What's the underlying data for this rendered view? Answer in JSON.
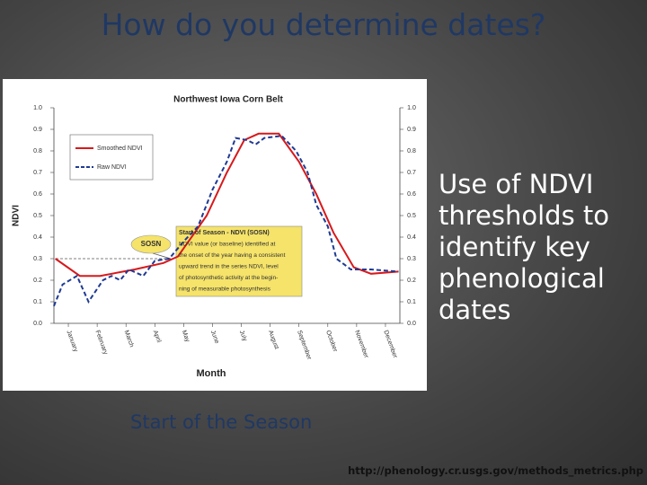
{
  "slide_title": "How do you determine dates?",
  "body_text": "Use of NDVI thresholds to identify key phenological dates",
  "caption": "Start of the Season",
  "source_url": "http://phenology.cr.usgs.gov/methods_metrics.php",
  "chart_data": {
    "type": "line",
    "title": "Northwest Iowa Corn Belt",
    "x_label": "Month",
    "y_label": "NDVI",
    "xlim": [
      0,
      12
    ],
    "xticks": [
      {
        "value": 0.5,
        "label": "January"
      },
      {
        "value": 1.5,
        "label": "February"
      },
      {
        "value": 2.5,
        "label": "March"
      },
      {
        "value": 3.5,
        "label": "April"
      },
      {
        "value": 4.5,
        "label": "May"
      },
      {
        "value": 5.5,
        "label": "June"
      },
      {
        "value": 6.5,
        "label": "July"
      },
      {
        "value": 7.5,
        "label": "August"
      },
      {
        "value": 8.5,
        "label": "September"
      },
      {
        "value": 9.5,
        "label": "October"
      },
      {
        "value": 10.5,
        "label": "November"
      },
      {
        "value": 11.5,
        "label": "December"
      }
    ],
    "ylim": [
      0,
      1
    ],
    "yticks": [
      {
        "value": 0,
        "label": "0.0"
      },
      0.1,
      0.2,
      0.3,
      0.4,
      0.5,
      0.6,
      0.7,
      0.8,
      0.9,
      {
        "value": 1,
        "label": "1.0"
      }
    ],
    "y2lim": [
      0,
      1
    ],
    "y2ticks": [
      {
        "value": 0,
        "label": "0.0"
      },
      0.1,
      0.2,
      0.3,
      0.4,
      0.5,
      0.6,
      0.7,
      0.8,
      0.9,
      {
        "value": 1,
        "label": "1.0"
      }
    ],
    "series": [
      {
        "name": "Smoothed NDVI",
        "color": "#d7191c",
        "dash": false,
        "x": [
          0.05,
          0.9,
          1.6,
          2.8,
          3.8,
          4.3,
          5.3,
          6.0,
          6.6,
          7.1,
          7.8,
          8.5,
          9.1,
          9.7,
          10.4,
          11.0,
          11.95
        ],
        "values": [
          0.3,
          0.22,
          0.22,
          0.25,
          0.28,
          0.31,
          0.5,
          0.7,
          0.85,
          0.88,
          0.88,
          0.75,
          0.6,
          0.42,
          0.26,
          0.23,
          0.24
        ]
      },
      {
        "name": "Raw NDVI",
        "color": "#1f3a93",
        "dash": true,
        "x": [
          0,
          0.3,
          0.8,
          1.2,
          1.7,
          2.0,
          2.3,
          2.6,
          3.1,
          3.5,
          4.0,
          4.5,
          5.0,
          5.5,
          6.0,
          6.3,
          6.7,
          7.0,
          7.3,
          7.9,
          8.4,
          8.8,
          9.1,
          9.5,
          9.8,
          10.3,
          11.0,
          11.95
        ],
        "values": [
          0.08,
          0.18,
          0.22,
          0.1,
          0.2,
          0.22,
          0.2,
          0.25,
          0.22,
          0.29,
          0.3,
          0.38,
          0.45,
          0.62,
          0.75,
          0.86,
          0.85,
          0.83,
          0.86,
          0.87,
          0.8,
          0.7,
          0.55,
          0.45,
          0.3,
          0.25,
          0.25,
          0.24
        ]
      }
    ],
    "legend": "upper left",
    "annotation_label": "SOSN",
    "annotation_box": [
      "Start of Season - NDVI (SOSN)",
      "NDVI value (or baseline) identified at",
      "the onset of the year having a consistent",
      "upward trend in the series NDVI, level",
      "of photosynthetic activity at the begin-",
      "ning of measurable photosynthesis"
    ]
  }
}
